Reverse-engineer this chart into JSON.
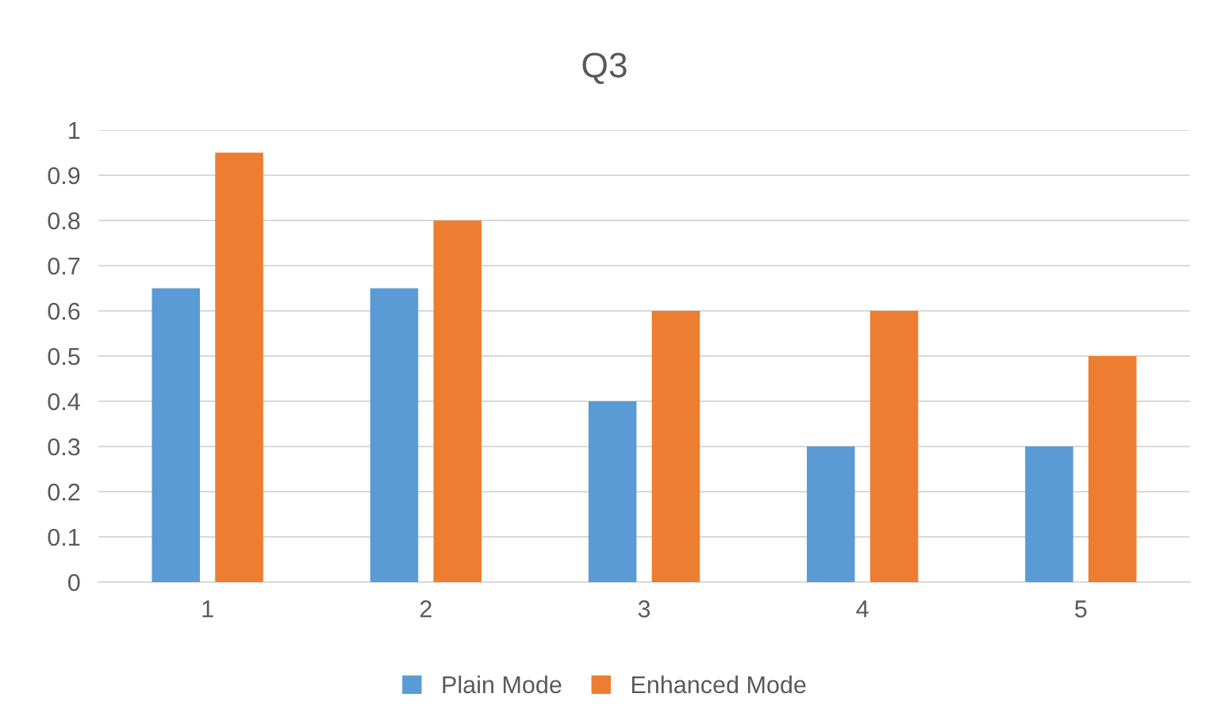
{
  "chart_data": {
    "type": "bar",
    "title": "Q3",
    "categories": [
      "1",
      "2",
      "3",
      "4",
      "5"
    ],
    "series": [
      {
        "name": "Plain Mode",
        "color": "#5b9bd5",
        "values": [
          0.65,
          0.65,
          0.4,
          0.3,
          0.3
        ]
      },
      {
        "name": "Enhanced Mode",
        "color": "#ed7d31",
        "values": [
          0.95,
          0.8,
          0.6,
          0.6,
          0.5
        ]
      }
    ],
    "ylim": [
      0,
      1
    ],
    "yticks": [
      0,
      0.1,
      0.2,
      0.3,
      0.4,
      0.5,
      0.6,
      0.7,
      0.8,
      0.9,
      1
    ],
    "grid": "y",
    "legend": "bottom"
  }
}
